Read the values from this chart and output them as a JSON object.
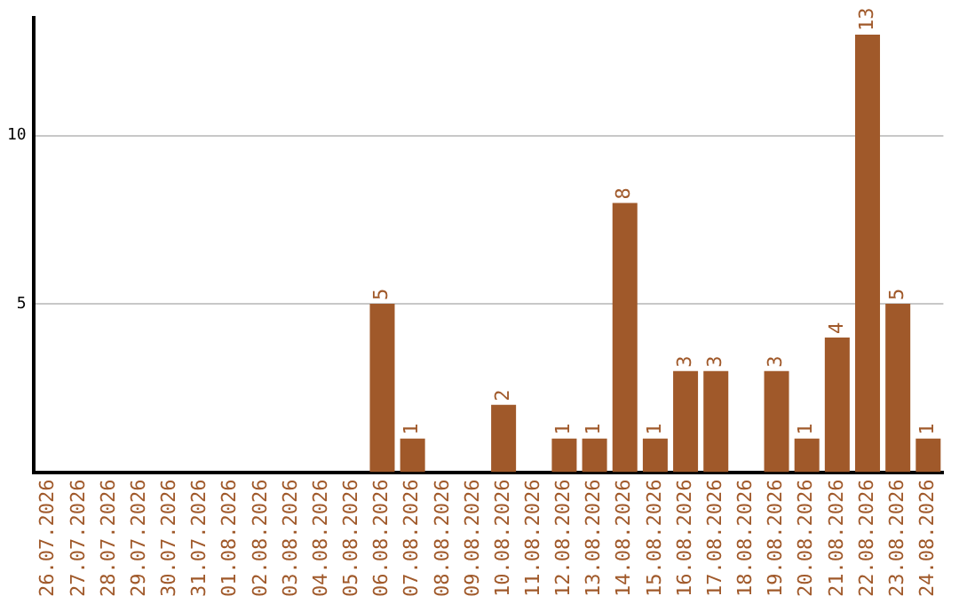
{
  "chart_data": {
    "type": "bar",
    "categories": [
      "26.07.2026",
      "27.07.2026",
      "28.07.2026",
      "29.07.2026",
      "30.07.2026",
      "31.07.2026",
      "01.08.2026",
      "02.08.2026",
      "03.08.2026",
      "04.08.2026",
      "05.08.2026",
      "06.08.2026",
      "07.08.2026",
      "08.08.2026",
      "09.08.2026",
      "10.08.2026",
      "11.08.2026",
      "12.08.2026",
      "13.08.2026",
      "14.08.2026",
      "15.08.2026",
      "16.08.2026",
      "17.08.2026",
      "18.08.2026",
      "19.08.2026",
      "20.08.2026",
      "21.08.2026",
      "22.08.2026",
      "23.08.2026",
      "24.08.2026"
    ],
    "values": [
      0,
      0,
      0,
      0,
      0,
      0,
      0,
      0,
      0,
      0,
      0,
      5,
      1,
      0,
      0,
      2,
      0,
      1,
      1,
      8,
      1,
      3,
      3,
      0,
      3,
      1,
      4,
      13,
      5,
      1
    ],
    "value_labels": [
      null,
      null,
      null,
      null,
      null,
      null,
      null,
      null,
      null,
      null,
      null,
      "5",
      "1",
      null,
      null,
      "2",
      null,
      "1",
      "1",
      "8",
      "1",
      "3",
      "3",
      null,
      "3",
      "1",
      "4",
      "13",
      "5",
      "1"
    ],
    "color": "#a0592a",
    "ylim": [
      0,
      13.5
    ],
    "yticks": [
      5,
      10
    ],
    "grid": "y",
    "legend": false
  }
}
